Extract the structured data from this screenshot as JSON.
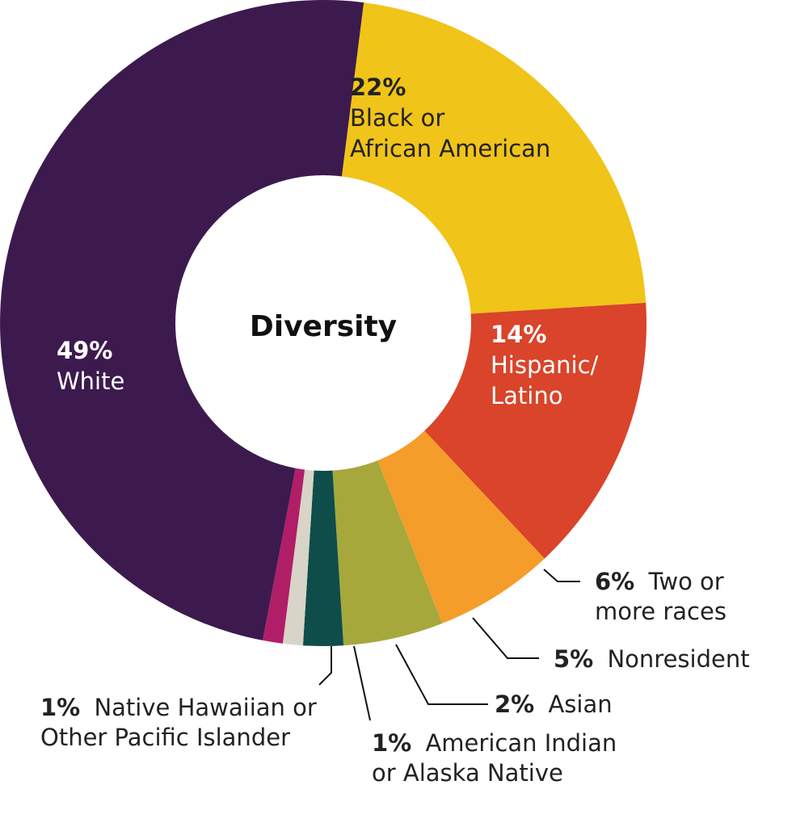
{
  "chart_data": {
    "type": "pie",
    "style": "donut",
    "title": "Diversity",
    "legend": "none",
    "slices": [
      {
        "label": "Black or African American",
        "percent_text": "22%",
        "value": 22,
        "color": "#F0C419",
        "text_color": "#222222"
      },
      {
        "label": "Hispanic/ Latino",
        "percent_text": "14%",
        "value": 14,
        "color": "#D9442A",
        "text_color": "#ffffff"
      },
      {
        "label": "Two or more races",
        "percent_text": "6%",
        "value": 6,
        "color": "#F59D2A",
        "text_color": "#222222"
      },
      {
        "label": "Nonresident",
        "percent_text": "5%",
        "value": 5,
        "color": "#A6A83C",
        "text_color": "#222222"
      },
      {
        "label": "Asian",
        "percent_text": "2%",
        "value": 2,
        "color": "#0E4D4A",
        "text_color": "#222222"
      },
      {
        "label": "American Indian or Alaska Native",
        "percent_text": "1%",
        "value": 1,
        "color": "#D8D4C8",
        "text_color": "#222222"
      },
      {
        "label": "Native Hawaiian or Other Pacific Islander",
        "percent_text": "1%",
        "value": 1,
        "color": "#B01E67",
        "text_color": "#222222"
      },
      {
        "label": "White",
        "percent_text": "49%",
        "value": 49,
        "color": "#3C1A4E",
        "text_color": "#ffffff"
      }
    ]
  },
  "labels": {
    "black": {
      "pct": "22%",
      "line1": "Black or",
      "line2": "African American"
    },
    "hispanic": {
      "pct": "14%",
      "line1": "Hispanic/",
      "line2": "Latino"
    },
    "two": {
      "pct": "6%",
      "line1": "Two or",
      "line2": "more races"
    },
    "nonres": {
      "pct": "5%",
      "line1": "Nonresident"
    },
    "asian": {
      "pct": "2%",
      "line1": "Asian"
    },
    "amind": {
      "pct": "1%",
      "line1": "American Indian",
      "line2": "or Alaska Native"
    },
    "hawaiian": {
      "pct": "1%",
      "line1": "Native Hawaiian or",
      "line2": "Other Pacific Islander"
    },
    "white": {
      "pct": "49%",
      "line1": "White"
    }
  }
}
